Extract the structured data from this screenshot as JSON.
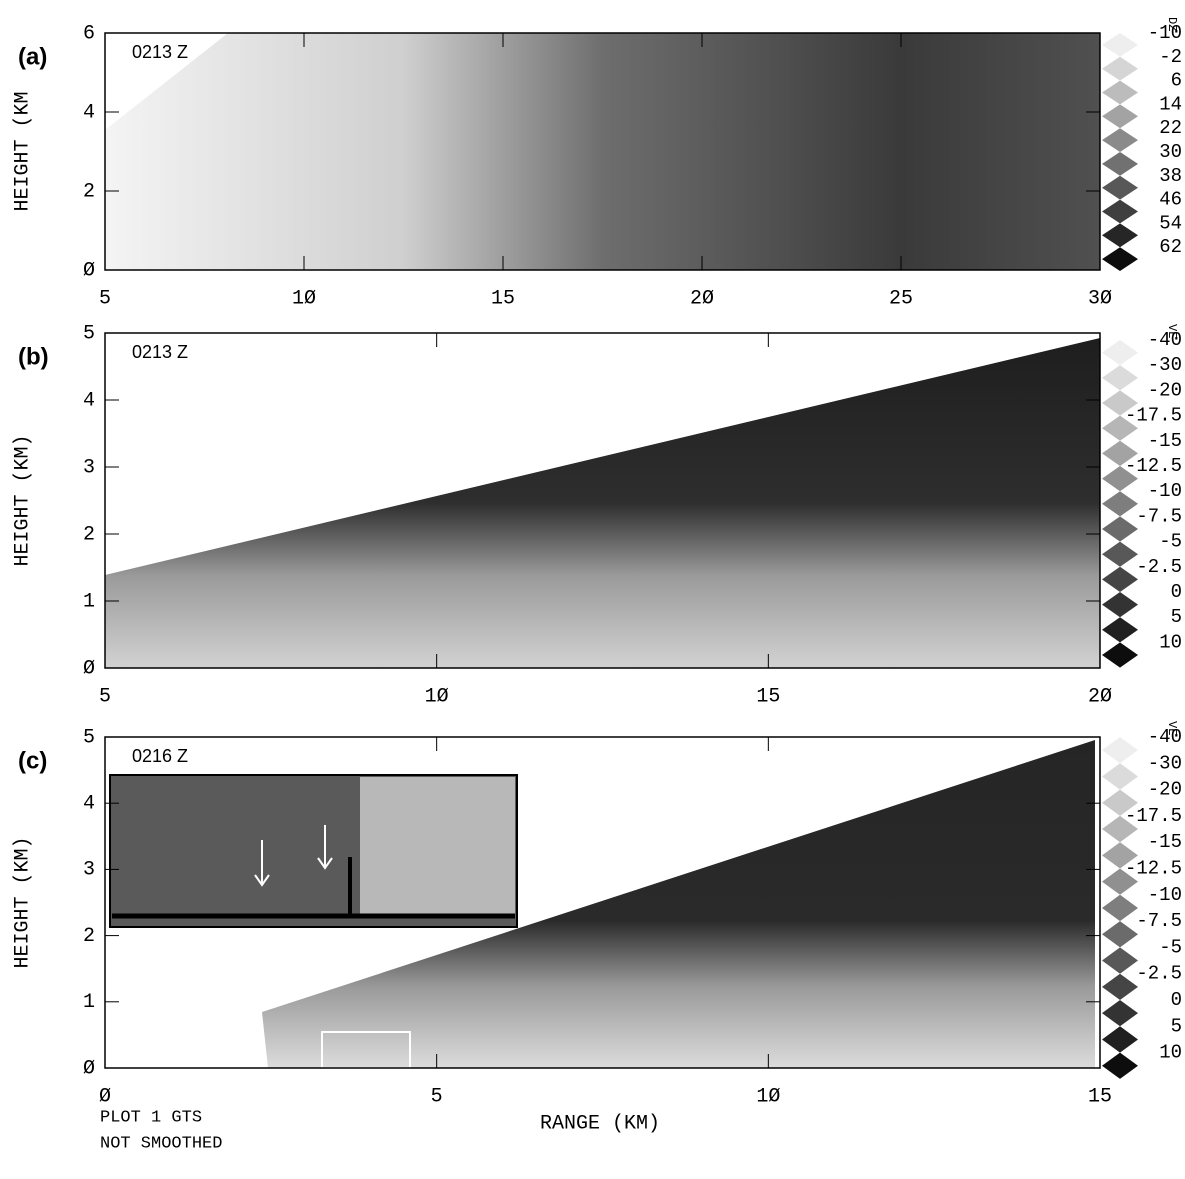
{
  "chart_data": [
    {
      "type": "rhi",
      "panel_label": "(a)",
      "annotation": "0213 Z",
      "y_label": "HEIGHT (KM",
      "xlim": [
        5,
        30
      ],
      "xticks": [
        5,
        {
          "value": 10,
          "label": "1Ø"
        },
        15,
        {
          "value": 20,
          "label": "2Ø"
        },
        25,
        {
          "value": 30,
          "label": "3Ø"
        }
      ],
      "ylim": [
        0,
        6
      ],
      "yticks": [
        {
          "value": 0,
          "label": "Ø"
        },
        2,
        4,
        6
      ],
      "colorbar": {
        "title": "DZ",
        "levels": [
          -10,
          -2,
          6,
          14,
          22,
          30,
          38,
          46,
          54,
          62
        ]
      }
    },
    {
      "type": "rhi",
      "panel_label": "(b)",
      "annotation": "0213 Z",
      "y_label": "HEIGHT (KM)",
      "xlim": [
        5,
        20
      ],
      "xticks": [
        5,
        {
          "value": 10,
          "label": "1Ø"
        },
        15,
        {
          "value": 20,
          "label": "2Ø"
        }
      ],
      "ylim": [
        0,
        5
      ],
      "yticks": [
        {
          "value": 0,
          "label": "Ø"
        },
        1,
        2,
        3,
        4,
        5
      ],
      "colorbar": {
        "title": "VE",
        "levels": [
          -40,
          -30,
          -20,
          -17.5,
          -15,
          -12.5,
          -10,
          -7.5,
          -5,
          -2.5,
          0,
          5,
          10
        ]
      }
    },
    {
      "type": "rhi",
      "panel_label": "(c)",
      "annotation": "0216 Z",
      "y_label": "HEIGHT (KM)",
      "xlim": [
        0,
        15
      ],
      "xticks": [
        {
          "value": 0,
          "label": "Ø"
        },
        5,
        {
          "value": 10,
          "label": "1Ø"
        },
        15
      ],
      "ylim": [
        0,
        5
      ],
      "yticks": [
        {
          "value": 0,
          "label": "Ø"
        },
        1,
        2,
        3,
        4,
        5
      ],
      "colorbar": {
        "title": "VE",
        "levels": [
          -40,
          -30,
          -20,
          -17.5,
          -15,
          -12.5,
          -10,
          -7.5,
          -5,
          -2.5,
          0,
          5,
          10
        ]
      }
    }
  ],
  "x_label": "RANGE (KM)",
  "footer": [
    "PLOT  1 GTS",
    "NOT SMOOTHED"
  ]
}
